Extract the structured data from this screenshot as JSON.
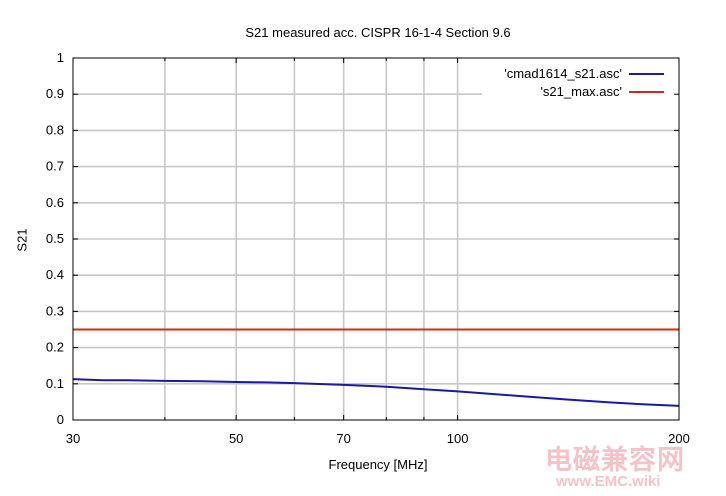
{
  "chart_data": {
    "type": "line",
    "title": "S21 measured acc. CISPR 16-1-4 Section 9.6",
    "xlabel": "Frequency [MHz]",
    "ylabel": "S21",
    "xscale": "log",
    "xlim": [
      30,
      200
    ],
    "ylim": [
      0,
      1
    ],
    "x_ticks": [
      30,
      50,
      70,
      100,
      200
    ],
    "x_tick_labels": [
      "30",
      "50",
      "70",
      "100",
      "200"
    ],
    "x_minor_grid": [
      40,
      60,
      80,
      90
    ],
    "y_ticks": [
      0,
      0.1,
      0.2,
      0.3,
      0.4,
      0.5,
      0.6,
      0.7,
      0.8,
      0.9,
      1
    ],
    "y_tick_labels": [
      "0",
      "0.1",
      "0.2",
      "0.3",
      "0.4",
      "0.5",
      "0.6",
      "0.7",
      "0.8",
      "0.9",
      "1"
    ],
    "grid": true,
    "legend_position": "top-right",
    "series": [
      {
        "name": "'cmad1614_s21.asc'",
        "color": "#1a1aa6",
        "x": [
          30,
          33,
          35,
          40,
          45,
          50,
          55,
          60,
          70,
          80,
          90,
          100,
          120,
          140,
          160,
          180,
          200
        ],
        "y": [
          0.113,
          0.11,
          0.11,
          0.108,
          0.107,
          0.105,
          0.104,
          0.102,
          0.097,
          0.092,
          0.085,
          0.079,
          0.067,
          0.057,
          0.049,
          0.043,
          0.039
        ]
      },
      {
        "name": "'s21_max.asc'",
        "color": "#d42a1a",
        "x": [
          30,
          200
        ],
        "y": [
          0.25,
          0.25
        ]
      }
    ]
  },
  "watermark": {
    "chinese": "电磁兼容网",
    "url": "www.EMC.wiki"
  }
}
